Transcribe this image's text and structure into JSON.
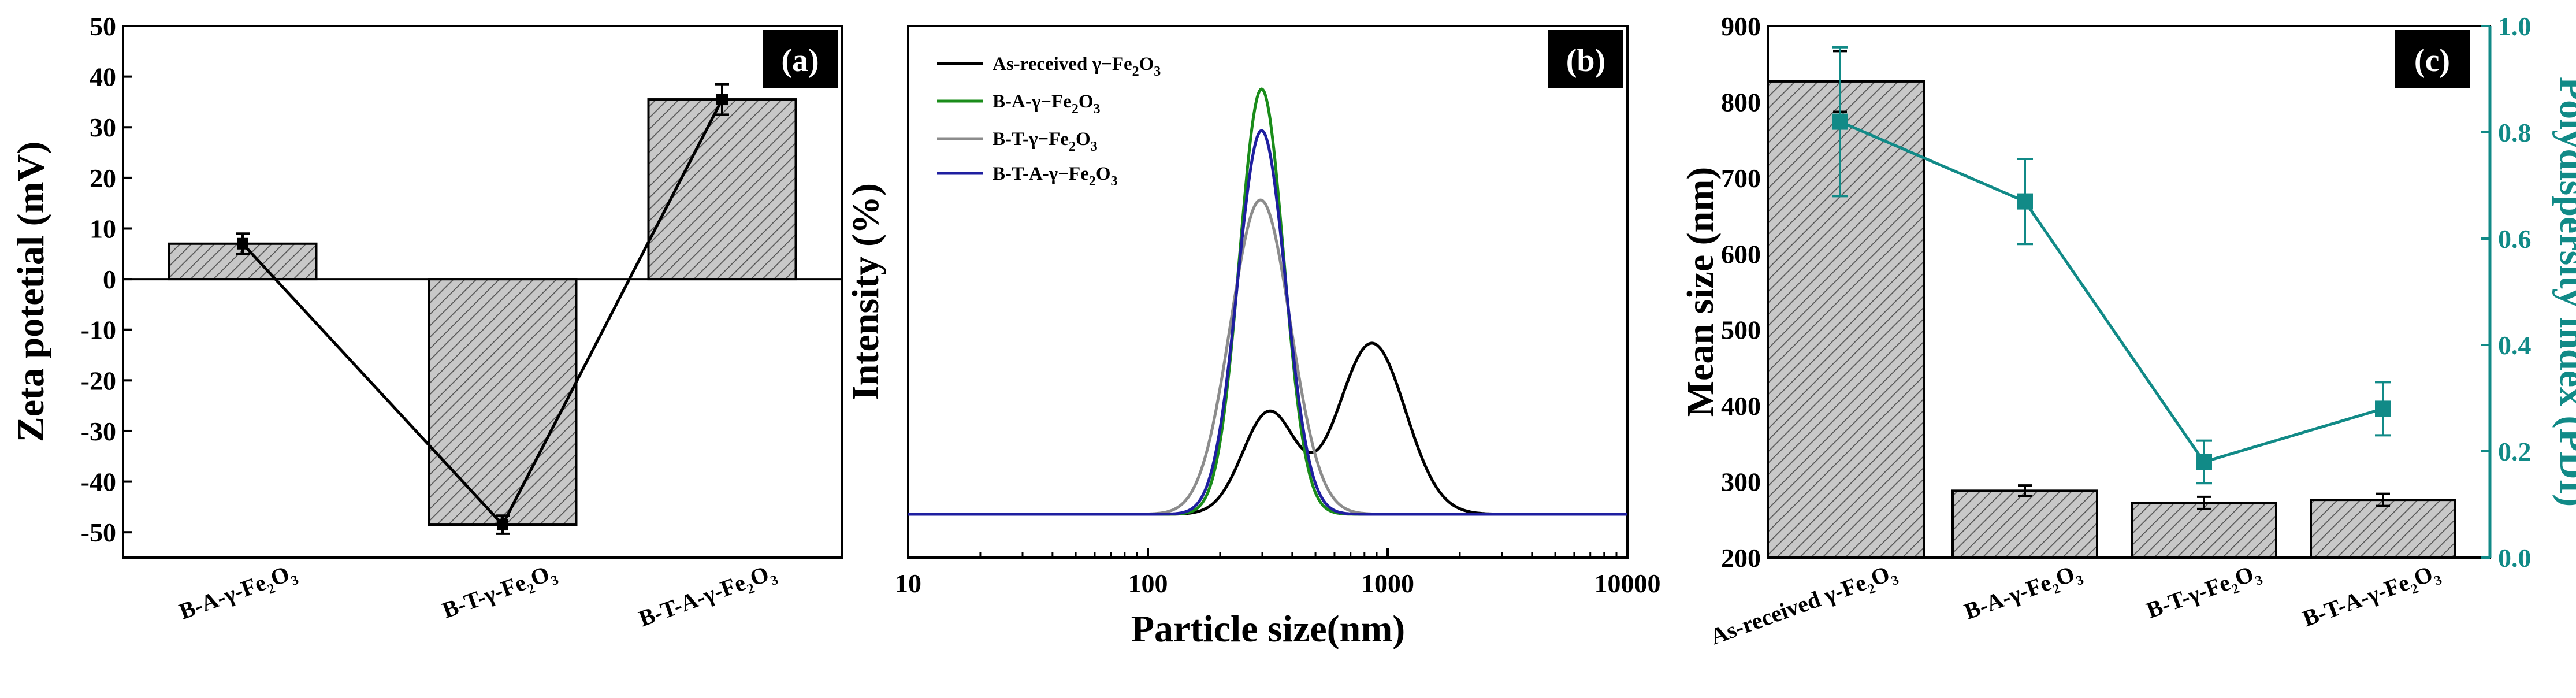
{
  "colors": {
    "bar_fill": "#c8c8c8",
    "hatch": "#555555",
    "pdi": "#118a87",
    "panel_label_bg": "#000000",
    "as_received": "#000000",
    "ba": "#1a8c1a",
    "bt": "#8c8c8c",
    "bta": "#1f1fa0"
  },
  "chart_data": [
    {
      "panel": "(a)",
      "type": "bar",
      "categories": [
        {
          "base": "B-A-γ-Fe",
          "s1": "2",
          "mid": "O",
          "s2": "3"
        },
        {
          "base": "B-T-γ-Fe",
          "s1": "2",
          "mid": "O",
          "s2": "3"
        },
        {
          "base": "B-T-A-γ-Fe",
          "s1": "2",
          "mid": "O",
          "s2": "3"
        }
      ],
      "values": [
        7,
        -48.5,
        35.5
      ],
      "errors": [
        2,
        1.8,
        3
      ],
      "line_overlay": true,
      "ylabel": "Zeta potetial (mV)",
      "ylim": [
        -55,
        50
      ],
      "yticks": [
        50,
        40,
        30,
        20,
        10,
        0,
        -10,
        -20,
        -30,
        -40,
        -50
      ]
    },
    {
      "panel": "(b)",
      "type": "line",
      "xscale": "log",
      "xlabel": "Particle size(nm)",
      "ylabel": "Intensity (%)",
      "xlim": [
        10,
        10000
      ],
      "xticks": [
        10,
        100,
        1000,
        10000
      ],
      "ylim": [
        0,
        100
      ],
      "series": [
        {
          "name": {
            "base": "As-received γ−Fe",
            "s1": "2",
            "mid": "O",
            "s2": "3"
          },
          "color_key": "as_received",
          "peaks": [
            {
              "center": 320,
              "sigma": 0.11,
              "height": 22
            },
            {
              "center": 860,
              "sigma": 0.14,
              "height": 37
            }
          ]
        },
        {
          "name": {
            "base": "B-A-γ−Fe",
            "s1": "2",
            "mid": "O",
            "s2": "3"
          },
          "color_key": "ba",
          "peaks": [
            {
              "center": 298,
              "sigma": 0.092,
              "height": 92
            }
          ]
        },
        {
          "name": {
            "base": "B-T-γ−Fe",
            "s1": "2",
            "mid": "O",
            "s2": "3"
          },
          "color_key": "bt",
          "peaks": [
            {
              "center": 295,
              "sigma": 0.125,
              "height": 68
            }
          ]
        },
        {
          "name": {
            "base": "B-T-A-γ−Fe",
            "s1": "2",
            "mid": "O",
            "s2": "3"
          },
          "color_key": "bta",
          "peaks": [
            {
              "center": 298,
              "sigma": 0.1,
              "height": 83
            }
          ]
        }
      ]
    },
    {
      "panel": "(c)",
      "type": "bar",
      "categories": [
        {
          "base": "As-received γ-Fe",
          "s1": "2",
          "mid": "O",
          "s2": "3"
        },
        {
          "base": "B-A-γ-Fe",
          "s1": "2",
          "mid": "O",
          "s2": "3"
        },
        {
          "base": "B-T-γ-Fe",
          "s1": "2",
          "mid": "O",
          "s2": "3"
        },
        {
          "base": "B-T-A-γ-Fe",
          "s1": "2",
          "mid": "O",
          "s2": "3"
        }
      ],
      "values": [
        827,
        288,
        272,
        276
      ],
      "errors": [
        40,
        7,
        8,
        8
      ],
      "ylabel": "Mean size (nm)",
      "ylim": [
        200,
        900
      ],
      "yticks": [
        900,
        800,
        700,
        600,
        500,
        400,
        300,
        200
      ],
      "secondary": {
        "name": "Polydispersity index (PDI)",
        "values": [
          0.82,
          0.67,
          0.18,
          0.28
        ],
        "errors": [
          0.14,
          0.08,
          0.04,
          0.05
        ],
        "ylim": [
          0,
          1
        ],
        "yticks": [
          "1.0",
          "0.8",
          "0.6",
          "0.4",
          "0.2",
          "0.0"
        ]
      }
    }
  ]
}
